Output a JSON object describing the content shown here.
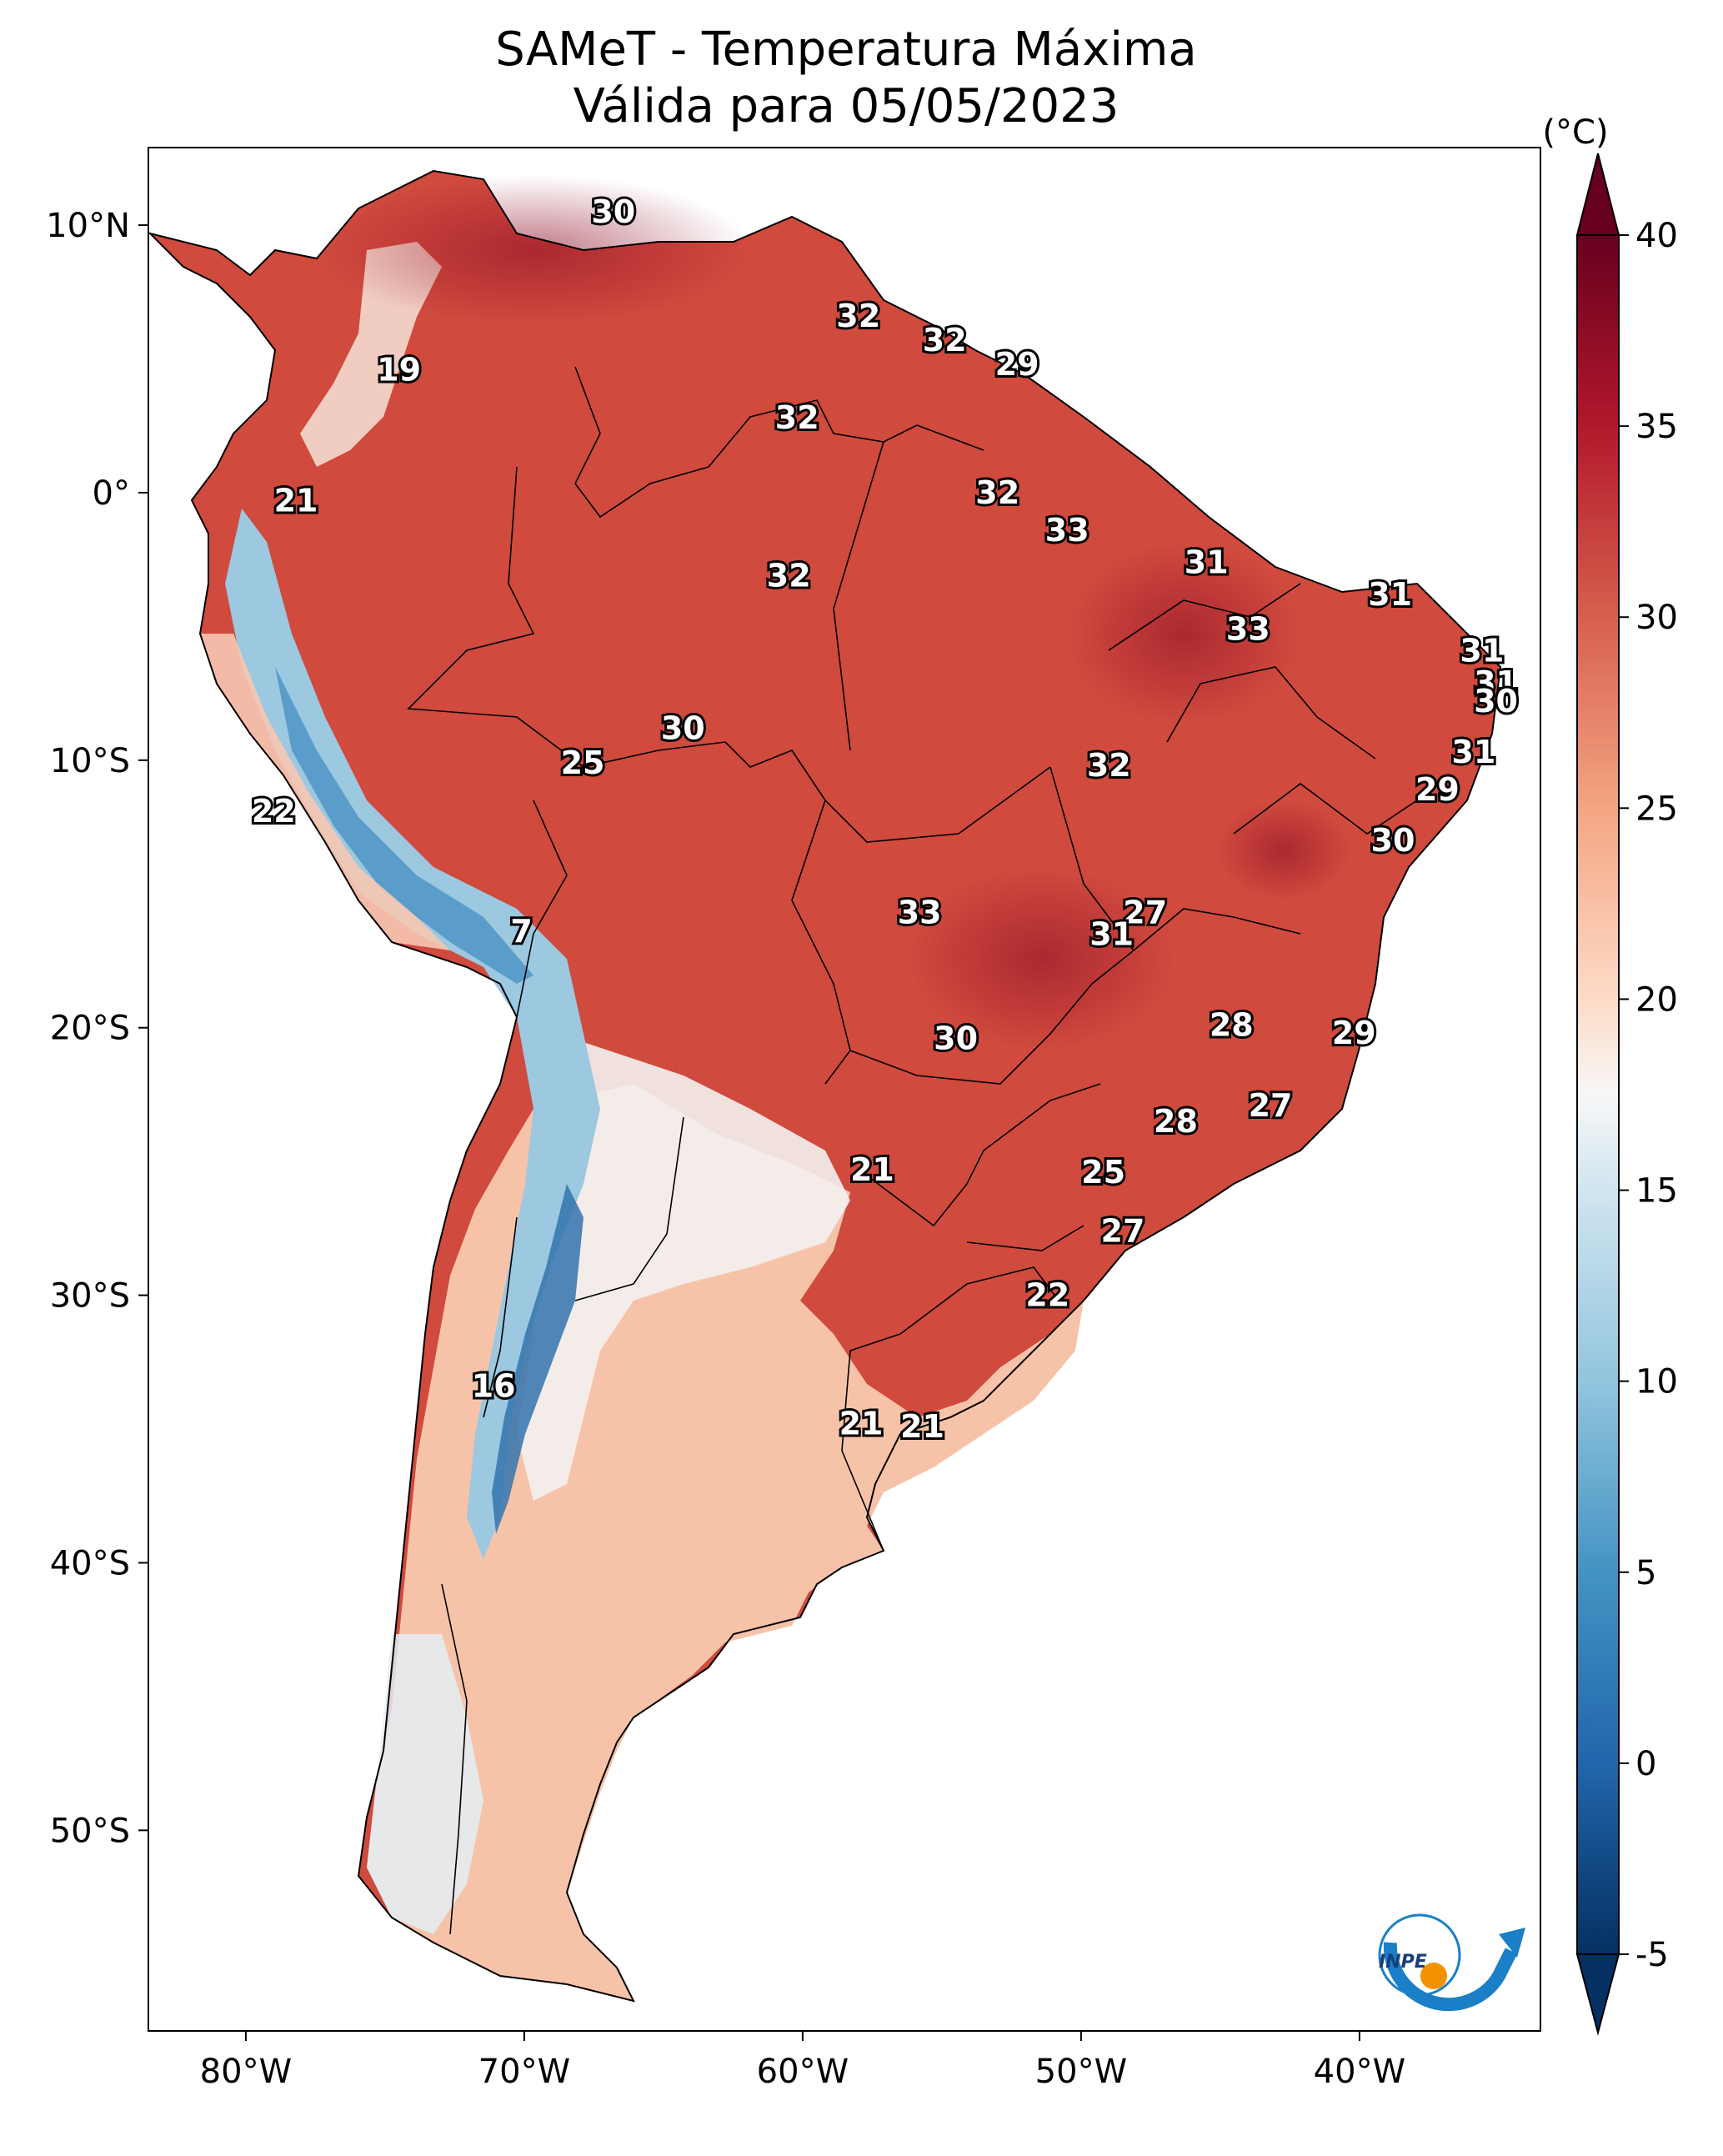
{
  "title": {
    "line1": "SAMeT - Temperatura Máxima",
    "line2": "Válida para 05/05/2023"
  },
  "map": {
    "lon_range": [
      -83.5,
      -33.5
    ],
    "lat_range": [
      -57.5,
      12.9
    ],
    "lon_ticks": [
      {
        "lon": -80,
        "label": "80°W"
      },
      {
        "lon": -70,
        "label": "70°W"
      },
      {
        "lon": -60,
        "label": "60°W"
      },
      {
        "lon": -50,
        "label": "50°W"
      },
      {
        "lon": -40,
        "label": "40°W"
      }
    ],
    "lat_ticks": [
      {
        "lat": 10,
        "label": "10°N"
      },
      {
        "lat": 0,
        "label": "0°"
      },
      {
        "lat": -10,
        "label": "10°S"
      },
      {
        "lat": -20,
        "label": "20°S"
      },
      {
        "lat": -30,
        "label": "30°S"
      },
      {
        "lat": -40,
        "label": "40°S"
      },
      {
        "lat": -50,
        "label": "50°S"
      }
    ],
    "labels": [
      {
        "lon": -66.8,
        "lat": 10.5,
        "value": "30"
      },
      {
        "lon": -74.5,
        "lat": 4.6,
        "value": "19"
      },
      {
        "lon": -78.2,
        "lat": -0.3,
        "value": "21"
      },
      {
        "lon": -58.0,
        "lat": 6.6,
        "value": "32"
      },
      {
        "lon": -54.9,
        "lat": 5.7,
        "value": "32"
      },
      {
        "lon": -52.3,
        "lat": 4.8,
        "value": "29"
      },
      {
        "lon": -60.2,
        "lat": 2.8,
        "value": "32"
      },
      {
        "lon": -53.0,
        "lat": 0.0,
        "value": "32"
      },
      {
        "lon": -60.5,
        "lat": -3.1,
        "value": "32"
      },
      {
        "lon": -50.5,
        "lat": -1.4,
        "value": "33"
      },
      {
        "lon": -45.5,
        "lat": -2.6,
        "value": "31"
      },
      {
        "lon": -38.9,
        "lat": -3.8,
        "value": "31"
      },
      {
        "lon": -44.0,
        "lat": -5.1,
        "value": "33"
      },
      {
        "lon": -35.6,
        "lat": -5.9,
        "value": "31"
      },
      {
        "lon": -35.1,
        "lat": -7.1,
        "value": "31"
      },
      {
        "lon": -35.1,
        "lat": -7.8,
        "value": "30"
      },
      {
        "lon": -35.9,
        "lat": -9.7,
        "value": "31"
      },
      {
        "lon": -37.2,
        "lat": -11.1,
        "value": "29"
      },
      {
        "lon": -38.8,
        "lat": -13.0,
        "value": "30"
      },
      {
        "lon": -64.3,
        "lat": -8.8,
        "value": "30"
      },
      {
        "lon": -67.9,
        "lat": -10.1,
        "value": "25"
      },
      {
        "lon": -49.0,
        "lat": -10.2,
        "value": "32"
      },
      {
        "lon": -79.0,
        "lat": -11.9,
        "value": "22"
      },
      {
        "lon": -55.8,
        "lat": -15.7,
        "value": "33"
      },
      {
        "lon": -47.7,
        "lat": -15.7,
        "value": "27"
      },
      {
        "lon": -48.9,
        "lat": -16.5,
        "value": "31"
      },
      {
        "lon": -70.1,
        "lat": -16.4,
        "value": "7"
      },
      {
        "lon": -44.6,
        "lat": -19.9,
        "value": "28"
      },
      {
        "lon": -40.2,
        "lat": -20.2,
        "value": "29"
      },
      {
        "lon": -54.5,
        "lat": -20.4,
        "value": "30"
      },
      {
        "lon": -43.2,
        "lat": -22.9,
        "value": "27"
      },
      {
        "lon": -46.6,
        "lat": -23.5,
        "value": "28"
      },
      {
        "lon": -57.5,
        "lat": -25.3,
        "value": "21"
      },
      {
        "lon": -49.2,
        "lat": -25.4,
        "value": "25"
      },
      {
        "lon": -48.5,
        "lat": -27.6,
        "value": "27"
      },
      {
        "lon": -51.2,
        "lat": -30.0,
        "value": "22"
      },
      {
        "lon": -71.1,
        "lat": -33.4,
        "value": "16"
      },
      {
        "lon": -57.9,
        "lat": -34.8,
        "value": "21"
      },
      {
        "lon": -55.7,
        "lat": -34.9,
        "value": "21"
      }
    ]
  },
  "colorbar": {
    "unit": "(°C)",
    "min": -5,
    "max": 40,
    "ticks": [
      -5,
      0,
      5,
      10,
      15,
      20,
      25,
      30,
      35,
      40
    ],
    "colors": [
      {
        "v": -5,
        "c": "#053061"
      },
      {
        "v": 0,
        "c": "#2166ac"
      },
      {
        "v": 5,
        "c": "#4393c3"
      },
      {
        "v": 10,
        "c": "#92c5de"
      },
      {
        "v": 15,
        "c": "#d1e5f0"
      },
      {
        "v": 17.5,
        "c": "#f7f7f7"
      },
      {
        "v": 20,
        "c": "#fddbc7"
      },
      {
        "v": 25,
        "c": "#f4a582"
      },
      {
        "v": 30,
        "c": "#d6604d"
      },
      {
        "v": 35,
        "c": "#b2182b"
      },
      {
        "v": 40,
        "c": "#67001f"
      }
    ]
  },
  "logo": {
    "text": "INPE",
    "arc_color": "#1a7fc7",
    "dot_color": "#f39200"
  }
}
